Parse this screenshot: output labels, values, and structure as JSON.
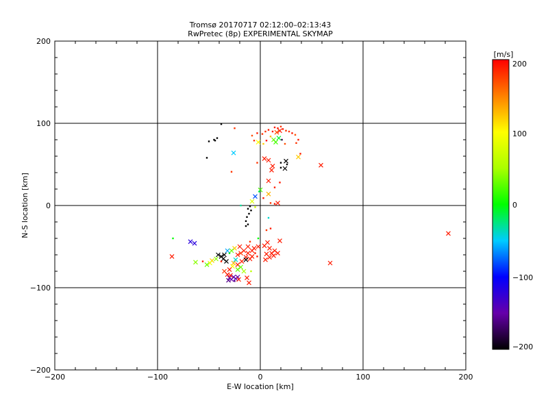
{
  "chart_data": {
    "type": "scatter",
    "title": "Tromsø 20170717 02:12:00–02:13:43",
    "subtitle": "RwPretec (8p) EXPERIMENTAL SKYMAP",
    "xlabel": "E-W location [km]",
    "ylabel": "N-S location [km]",
    "xlim": [
      -200,
      200
    ],
    "ylim": [
      -200,
      200
    ],
    "xticks": [
      -200,
      -100,
      0,
      100,
      200
    ],
    "yticks": [
      -200,
      -100,
      0,
      100,
      200
    ],
    "xtick_labels": [
      "−200",
      "−100",
      "0",
      "100",
      "200"
    ],
    "ytick_labels": [
      "−200",
      "−100",
      "0",
      "100",
      "200"
    ],
    "grid": true,
    "colorbar": {
      "label": "[m/s]",
      "min": -200,
      "max": 200,
      "ticks": [
        200,
        100,
        0,
        -100,
        -200
      ],
      "tick_labels": [
        "200",
        "100",
        "0",
        "−100",
        "−200"
      ]
    },
    "points": [
      {
        "x": 14,
        "y": 95,
        "v": 190,
        "m": "dot"
      },
      {
        "x": 17,
        "y": 94,
        "v": 190,
        "m": "dot"
      },
      {
        "x": 20,
        "y": 96,
        "v": 180,
        "m": "dot"
      },
      {
        "x": 22,
        "y": 93,
        "v": 190,
        "m": "dot"
      },
      {
        "x": 25,
        "y": 91,
        "v": 180,
        "m": "dot"
      },
      {
        "x": 12,
        "y": 90,
        "v": 190,
        "m": "dot"
      },
      {
        "x": 16,
        "y": 89,
        "v": 170,
        "m": "x"
      },
      {
        "x": 19,
        "y": 91,
        "v": 190,
        "m": "x"
      },
      {
        "x": 28,
        "y": 90,
        "v": 180,
        "m": "dot"
      },
      {
        "x": 31,
        "y": 88,
        "v": 190,
        "m": "dot"
      },
      {
        "x": 34,
        "y": 86,
        "v": 170,
        "m": "dot"
      },
      {
        "x": 8,
        "y": 92,
        "v": 190,
        "m": "dot"
      },
      {
        "x": 5,
        "y": 90,
        "v": 180,
        "m": "dot"
      },
      {
        "x": 2,
        "y": 87,
        "v": 180,
        "m": "dot"
      },
      {
        "x": -3,
        "y": 88,
        "v": 190,
        "m": "dot"
      },
      {
        "x": -8,
        "y": 85,
        "v": 170,
        "m": "dot"
      },
      {
        "x": -25,
        "y": 94,
        "v": 180,
        "m": "dot"
      },
      {
        "x": 10,
        "y": 84,
        "v": 130,
        "m": "dot"
      },
      {
        "x": 13,
        "y": 80,
        "v": 30,
        "m": "x"
      },
      {
        "x": 18,
        "y": 82,
        "v": -10,
        "m": "x"
      },
      {
        "x": 21,
        "y": 80,
        "v": -180,
        "m": "dot"
      },
      {
        "x": 15,
        "y": 77,
        "v": 20,
        "m": "x"
      },
      {
        "x": 6,
        "y": 79,
        "v": 200,
        "m": "dot"
      },
      {
        "x": 3,
        "y": 75,
        "v": 120,
        "m": "dot"
      },
      {
        "x": -2,
        "y": 77,
        "v": 100,
        "m": "x"
      },
      {
        "x": -6,
        "y": 79,
        "v": 180,
        "m": "dot"
      },
      {
        "x": 24,
        "y": 75,
        "v": 170,
        "m": "dot"
      },
      {
        "x": 37,
        "y": 80,
        "v": 190,
        "m": "dot"
      },
      {
        "x": 35,
        "y": 76,
        "v": 180,
        "m": "dot"
      },
      {
        "x": -38,
        "y": 99,
        "v": -200,
        "m": "dot"
      },
      {
        "x": -42,
        "y": 82,
        "v": -200,
        "m": "dot"
      },
      {
        "x": -44,
        "y": 79,
        "v": -200,
        "m": "dot"
      },
      {
        "x": -50,
        "y": 78,
        "v": -200,
        "m": "dot"
      },
      {
        "x": -45,
        "y": 80,
        "v": -200,
        "m": "dot"
      },
      {
        "x": -26,
        "y": 64,
        "v": -50,
        "m": "x"
      },
      {
        "x": -52,
        "y": 58,
        "v": -200,
        "m": "dot"
      },
      {
        "x": 39,
        "y": 63,
        "v": 190,
        "m": "dot"
      },
      {
        "x": 37,
        "y": 59,
        "v": 120,
        "m": "x"
      },
      {
        "x": 25,
        "y": 54,
        "v": -200,
        "m": "x"
      },
      {
        "x": 20,
        "y": 52,
        "v": -200,
        "m": "dot"
      },
      {
        "x": 26,
        "y": 50,
        "v": -200,
        "m": "dot"
      },
      {
        "x": 24,
        "y": 45,
        "v": -200,
        "m": "x"
      },
      {
        "x": 20,
        "y": 46,
        "v": -200,
        "m": "dot"
      },
      {
        "x": 8,
        "y": 55,
        "v": 190,
        "m": "x"
      },
      {
        "x": 4,
        "y": 57,
        "v": 190,
        "m": "x"
      },
      {
        "x": 11,
        "y": 43,
        "v": 190,
        "m": "x"
      },
      {
        "x": 59,
        "y": 49,
        "v": 190,
        "m": "x"
      },
      {
        "x": -28,
        "y": 41,
        "v": 180,
        "m": "dot"
      },
      {
        "x": -3,
        "y": 52,
        "v": 180,
        "m": "dot"
      },
      {
        "x": 8,
        "y": 30,
        "v": 190,
        "m": "x"
      },
      {
        "x": 19,
        "y": 28,
        "v": 190,
        "m": "dot"
      },
      {
        "x": 14,
        "y": 22,
        "v": 190,
        "m": "dot"
      },
      {
        "x": 0,
        "y": 19,
        "v": 20,
        "m": "x"
      },
      {
        "x": -1,
        "y": 17,
        "v": -20,
        "m": "dot"
      },
      {
        "x": -5,
        "y": 11,
        "v": -80,
        "m": "x"
      },
      {
        "x": 8,
        "y": 14,
        "v": 130,
        "m": "x"
      },
      {
        "x": 3,
        "y": 9,
        "v": 190,
        "m": "dot"
      },
      {
        "x": 10,
        "y": 3,
        "v": 180,
        "m": "dot"
      },
      {
        "x": 14,
        "y": 2,
        "v": 190,
        "m": "dot"
      },
      {
        "x": 17,
        "y": 3,
        "v": 190,
        "m": "x"
      },
      {
        "x": -8,
        "y": 5,
        "v": 80,
        "m": "x"
      },
      {
        "x": -10,
        "y": -1,
        "v": -200,
        "m": "dot"
      },
      {
        "x": -12,
        "y": -4,
        "v": -200,
        "m": "dot"
      },
      {
        "x": -9,
        "y": -6,
        "v": -200,
        "m": "dot"
      },
      {
        "x": -11,
        "y": -10,
        "v": -200,
        "m": "dot"
      },
      {
        "x": -13,
        "y": -14,
        "v": -200,
        "m": "dot"
      },
      {
        "x": -14,
        "y": -19,
        "v": -200,
        "m": "dot"
      },
      {
        "x": -12,
        "y": -23,
        "v": -200,
        "m": "dot"
      },
      {
        "x": -14,
        "y": -25,
        "v": -200,
        "m": "dot"
      },
      {
        "x": -5,
        "y": -2,
        "v": 70,
        "m": "dot"
      },
      {
        "x": -19,
        "y": 0,
        "v": -30,
        "m": "dot"
      },
      {
        "x": 8,
        "y": -15,
        "v": -40,
        "m": "dot"
      },
      {
        "x": 10,
        "y": -28,
        "v": 190,
        "m": "dot"
      },
      {
        "x": 6,
        "y": -30,
        "v": 180,
        "m": "dot"
      },
      {
        "x": 183,
        "y": -34,
        "v": 190,
        "m": "x"
      },
      {
        "x": 68,
        "y": -70,
        "v": 190,
        "m": "x"
      },
      {
        "x": 19,
        "y": -43,
        "v": 190,
        "m": "x"
      },
      {
        "x": 7,
        "y": -45,
        "v": 190,
        "m": "x"
      },
      {
        "x": 4,
        "y": -49,
        "v": 190,
        "m": "x"
      },
      {
        "x": 9,
        "y": -52,
        "v": 190,
        "m": "x"
      },
      {
        "x": 14,
        "y": -55,
        "v": 190,
        "m": "x"
      },
      {
        "x": 11,
        "y": -58,
        "v": 190,
        "m": "x"
      },
      {
        "x": 6,
        "y": -59,
        "v": 190,
        "m": "x"
      },
      {
        "x": 13,
        "y": -61,
        "v": 190,
        "m": "x"
      },
      {
        "x": 9,
        "y": -63,
        "v": 190,
        "m": "x"
      },
      {
        "x": 17,
        "y": -58,
        "v": 190,
        "m": "x"
      },
      {
        "x": 5,
        "y": -66,
        "v": 190,
        "m": "x"
      },
      {
        "x": -2,
        "y": -50,
        "v": 190,
        "m": "x"
      },
      {
        "x": -6,
        "y": -52,
        "v": 190,
        "m": "x"
      },
      {
        "x": -12,
        "y": -50,
        "v": 190,
        "m": "x"
      },
      {
        "x": -16,
        "y": -55,
        "v": 190,
        "m": "x"
      },
      {
        "x": -19,
        "y": -58,
        "v": 180,
        "m": "x"
      },
      {
        "x": -22,
        "y": -60,
        "v": 190,
        "m": "x"
      },
      {
        "x": -8,
        "y": -62,
        "v": 190,
        "m": "x"
      },
      {
        "x": -10,
        "y": -65,
        "v": 190,
        "m": "x"
      },
      {
        "x": -12,
        "y": -58,
        "v": 190,
        "m": "x"
      },
      {
        "x": -14,
        "y": -63,
        "v": 190,
        "m": "x"
      },
      {
        "x": -18,
        "y": -68,
        "v": 190,
        "m": "x"
      },
      {
        "x": -22,
        "y": -72,
        "v": 190,
        "m": "x"
      },
      {
        "x": -20,
        "y": -50,
        "v": 190,
        "m": "x"
      },
      {
        "x": -8,
        "y": -55,
        "v": 190,
        "m": "x"
      },
      {
        "x": -5,
        "y": -58,
        "v": 190,
        "m": "dot"
      },
      {
        "x": -3,
        "y": -62,
        "v": 190,
        "m": "dot"
      },
      {
        "x": -25,
        "y": -52,
        "v": 120,
        "m": "x"
      },
      {
        "x": -28,
        "y": -55,
        "v": 30,
        "m": "x"
      },
      {
        "x": -30,
        "y": -58,
        "v": 0,
        "m": "dot"
      },
      {
        "x": -32,
        "y": -55,
        "v": -60,
        "m": "x"
      },
      {
        "x": -35,
        "y": -60,
        "v": -200,
        "m": "x"
      },
      {
        "x": -38,
        "y": -62,
        "v": -200,
        "m": "x"
      },
      {
        "x": -41,
        "y": -60,
        "v": -200,
        "m": "x"
      },
      {
        "x": -36,
        "y": -65,
        "v": -200,
        "m": "x"
      },
      {
        "x": -33,
        "y": -68,
        "v": -200,
        "m": "x"
      },
      {
        "x": -38,
        "y": -68,
        "v": 190,
        "m": "dot"
      },
      {
        "x": -43,
        "y": -65,
        "v": 40,
        "m": "x"
      },
      {
        "x": -47,
        "y": -67,
        "v": 120,
        "m": "x"
      },
      {
        "x": -49,
        "y": -70,
        "v": 90,
        "m": "x"
      },
      {
        "x": -52,
        "y": -72,
        "v": 30,
        "m": "x"
      },
      {
        "x": -63,
        "y": -69,
        "v": 40,
        "m": "x"
      },
      {
        "x": -56,
        "y": -68,
        "v": 190,
        "m": "dot"
      },
      {
        "x": -86,
        "y": -62,
        "v": 190,
        "m": "x"
      },
      {
        "x": -85,
        "y": -40,
        "v": 0,
        "m": "dot"
      },
      {
        "x": -64,
        "y": -46,
        "v": -120,
        "m": "x"
      },
      {
        "x": -68,
        "y": -44,
        "v": -120,
        "m": "x"
      },
      {
        "x": -26,
        "y": -70,
        "v": 130,
        "m": "x"
      },
      {
        "x": -27,
        "y": -74,
        "v": 100,
        "m": "x"
      },
      {
        "x": -30,
        "y": -78,
        "v": 190,
        "m": "x"
      },
      {
        "x": -35,
        "y": -80,
        "v": 180,
        "m": "x"
      },
      {
        "x": -22,
        "y": -78,
        "v": 30,
        "m": "x"
      },
      {
        "x": -19,
        "y": -75,
        "v": 30,
        "m": "x"
      },
      {
        "x": -16,
        "y": -80,
        "v": 50,
        "m": "x"
      },
      {
        "x": -14,
        "y": -66,
        "v": -200,
        "m": "x"
      },
      {
        "x": -24,
        "y": -66,
        "v": -40,
        "m": "x"
      },
      {
        "x": -32,
        "y": -84,
        "v": 190,
        "m": "x"
      },
      {
        "x": -30,
        "y": -88,
        "v": -150,
        "m": "x"
      },
      {
        "x": -28,
        "y": -90,
        "v": -150,
        "m": "x"
      },
      {
        "x": -31,
        "y": -91,
        "v": -160,
        "m": "x"
      },
      {
        "x": -26,
        "y": -87,
        "v": -150,
        "m": "x"
      },
      {
        "x": -24,
        "y": -89,
        "v": -140,
        "m": "x"
      },
      {
        "x": -22,
        "y": -87,
        "v": -150,
        "m": "x"
      },
      {
        "x": -29,
        "y": -85,
        "v": 190,
        "m": "x"
      },
      {
        "x": -25,
        "y": -92,
        "v": -160,
        "m": "dot"
      },
      {
        "x": -21,
        "y": -90,
        "v": 190,
        "m": "x"
      },
      {
        "x": -13,
        "y": -88,
        "v": 190,
        "m": "x"
      },
      {
        "x": -11,
        "y": -94,
        "v": 190,
        "m": "x"
      },
      {
        "x": -9,
        "y": -80,
        "v": 60,
        "m": "dot"
      },
      {
        "x": -2,
        "y": -40,
        "v": 0,
        "m": "dot"
      },
      {
        "x": -10,
        "y": -44,
        "v": 180,
        "m": "dot"
      },
      {
        "x": 12,
        "y": 48,
        "v": 190,
        "m": "x"
      }
    ]
  }
}
